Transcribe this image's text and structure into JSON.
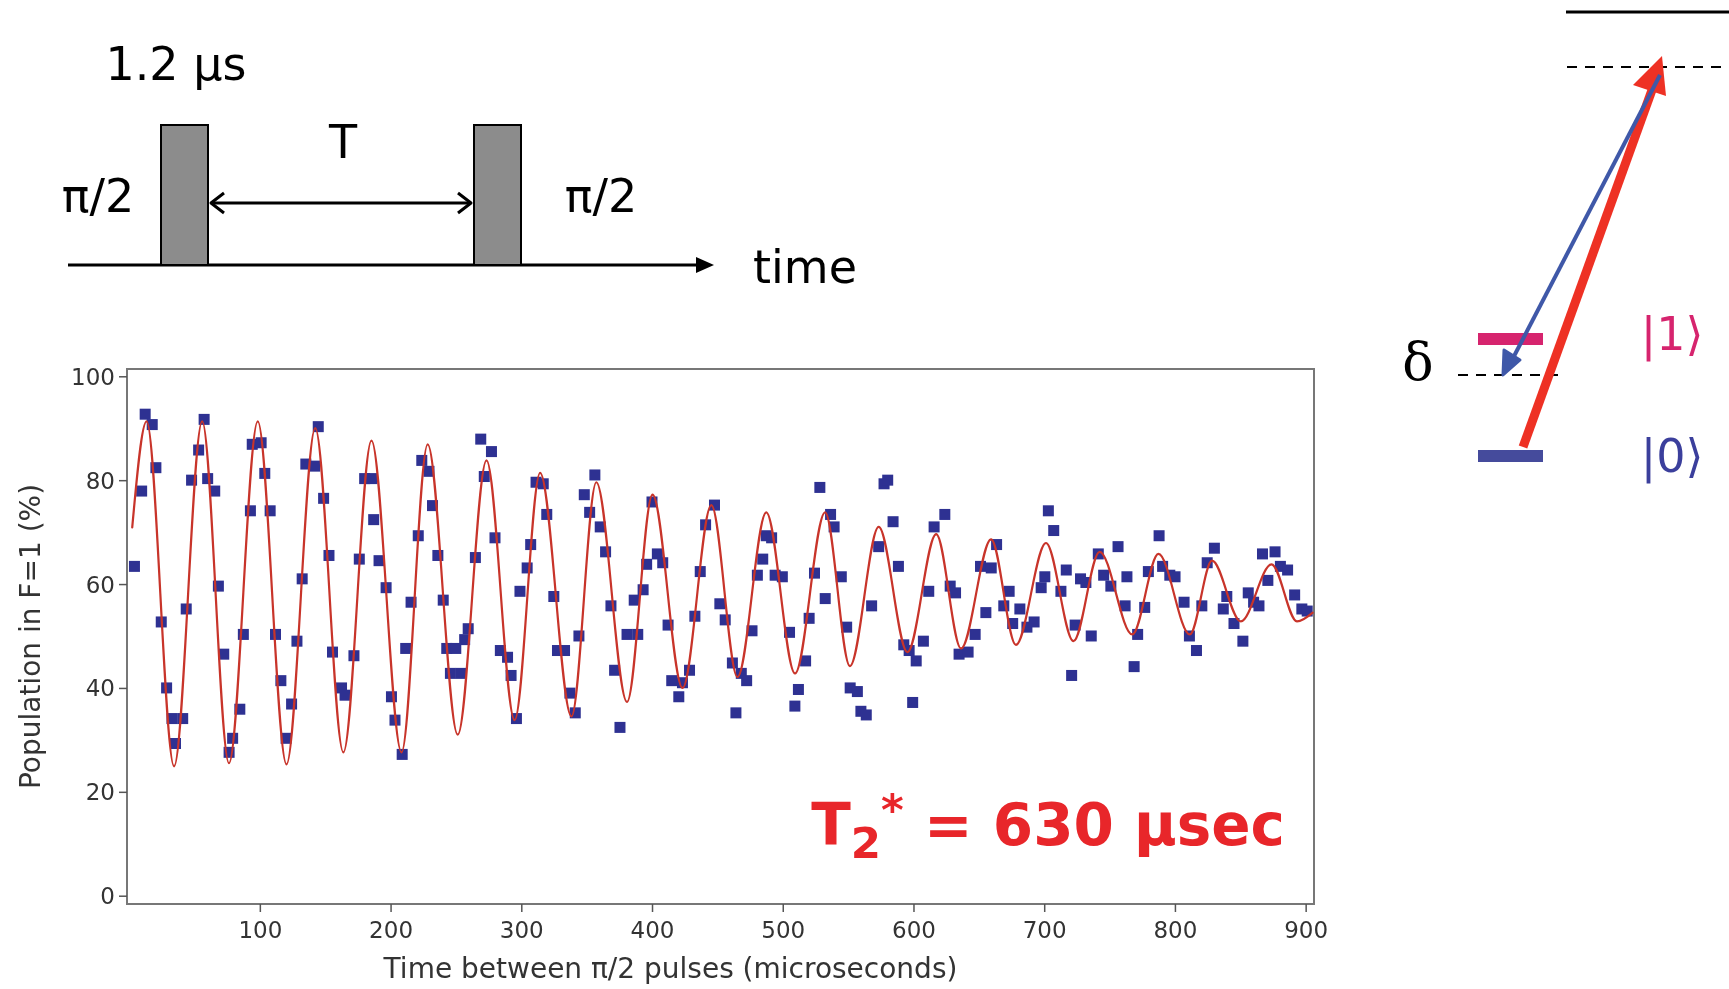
{
  "chart_data": {
    "type": "scatter",
    "xlabel": "Time between π/2 pulses (microseconds)",
    "ylabel": "Population in F=1 (%)",
    "xlim": [
      -2,
      906
    ],
    "ylim": [
      -1.5,
      101.5
    ],
    "xticks": [
      100,
      200,
      300,
      400,
      500,
      600,
      700,
      800,
      900
    ],
    "yticks": [
      0,
      20,
      40,
      60,
      80,
      100
    ],
    "grid": false,
    "annotations": [
      "T$_{2}$$^{*}$ = 630 μsec",
      "1.2 μs",
      "π/2",
      "T",
      "π/2",
      "time",
      "δ",
      "|1⟩",
      "|0⟩"
    ],
    "series": [
      {
        "type": "scatter",
        "marker": "square",
        "color": "#2e3192",
        "x": [
          3.7,
          9.2,
          11.9,
          17.3,
          20.1,
          24.2,
          28.3,
          32.4,
          35.1,
          40.6,
          43.3,
          47.4,
          52.8,
          57,
          59.7,
          65.1,
          67.9,
          72,
          76.1,
          78.8,
          84.3,
          87,
          92.4,
          93.8,
          100.6,
          103.4,
          107.5,
          111.6,
          115.7,
          119.7,
          123.9,
          128,
          132,
          134.8,
          141.6,
          144.3,
          148.4,
          152.5,
          155.2,
          162.1,
          164.8,
          171.6,
          175.7,
          179.8,
          185.3,
          186.7,
          190.8,
          196.2,
          200.3,
          203,
          208.5,
          211.2,
          215.3,
          220.8,
          223.5,
          229,
          231.7,
          235.8,
          239.9,
          242.6,
          245.4,
          249.5,
          253.6,
          256.3,
          259,
          264.5,
          268.6,
          271.3,
          276.8,
          279.5,
          283.6,
          289.1,
          291.8,
          295.9,
          298.6,
          304.1,
          306.8,
          310.9,
          316.4,
          319.1,
          324.5,
          327.3,
          332.7,
          336.8,
          340.9,
          343.7,
          347.8,
          351.9,
          355.9,
          360,
          364.1,
          368.2,
          371,
          375.1,
          380.5,
          386,
          388.7,
          392.8,
          395.5,
          399.6,
          403.7,
          407.8,
          411.9,
          414.7,
          420.1,
          422.9,
          428.3,
          432.4,
          436.5,
          440.6,
          447.4,
          451.5,
          455.6,
          461.1,
          463.8,
          467.9,
          472,
          476.1,
          480.2,
          484.3,
          487,
          491.1,
          493.8,
          499.3,
          504.8,
          508.9,
          511.6,
          517.1,
          519.8,
          523.9,
          528,
          532.1,
          536.2,
          538.9,
          544.4,
          548.5,
          551.2,
          556.7,
          559.4,
          563.5,
          567.6,
          573,
          577.1,
          579.9,
          584,
          588.1,
          592.2,
          596.3,
          599,
          601.7,
          607.2,
          611.3,
          615.4,
          623.6,
          627.7,
          631.8,
          634.5,
          641.4,
          646.8,
          650.9,
          655,
          659.1,
          663.2,
          668.7,
          672.8,
          675.5,
          681,
          686.4,
          691.9,
          697.3,
          700.1,
          702.8,
          706.9,
          712.4,
          716.5,
          720.6,
          723.3,
          727.4,
          731.5,
          735.6,
          741,
          745.1,
          750.6,
          756.1,
          761.5,
          762.9,
          768.4,
          771.1,
          776.5,
          779.3,
          787.5,
          790.2,
          795.7,
          799.7,
          806.6,
          810.7,
          816.1,
          820.2,
          824.3,
          829.8,
          836.6,
          839.3,
          844.8,
          851.6,
          855.7,
          859.8,
          863.9,
          866.6,
          870.7,
          876.2,
          880.3,
          885.8,
          891.2,
          896.7,
          900.8
        ],
        "values": [
          63.5,
          78,
          92.8,
          90.8,
          82.5,
          52.8,
          40.1,
          34.2,
          29.4,
          34.2,
          55.3,
          80.1,
          85.9,
          91.8,
          80.4,
          78,
          59.7,
          46.6,
          27.7,
          30.4,
          36,
          50.4,
          74.2,
          87,
          87.3,
          81.4,
          74.2,
          50.4,
          41.5,
          30.4,
          37,
          49.1,
          61.1,
          83.2,
          82.8,
          90.4,
          76.6,
          65.6,
          47,
          40.1,
          38.7,
          46.3,
          64.9,
          80.4,
          80.4,
          72.5,
          64.6,
          59.4,
          38.4,
          33.9,
          27.3,
          47.7,
          56.6,
          69.4,
          83.9,
          81.8,
          75.2,
          65.6,
          57,
          47.7,
          42.9,
          47.7,
          42.9,
          49.4,
          51.5,
          65.2,
          88,
          80.8,
          85.6,
          69,
          47.3,
          46,
          42.5,
          34.2,
          58.7,
          63.2,
          67.7,
          79.7,
          79.4,
          73.5,
          57.7,
          47.3,
          47.3,
          39.1,
          35.3,
          50.1,
          77.3,
          73.9,
          81.1,
          71.1,
          66.3,
          55.9,
          43.5,
          32.5,
          50.4,
          57,
          50.4,
          59,
          63.9,
          75.9,
          65.9,
          64.2,
          52.2,
          41.5,
          38.4,
          41.1,
          43.5,
          53.9,
          62.5,
          71.5,
          75.3,
          56.3,
          53.2,
          44.9,
          35.3,
          42.9,
          41.5,
          51.1,
          61.8,
          64.9,
          69.4,
          69,
          61.8,
          61.5,
          50.8,
          36.6,
          39.8,
          45.3,
          53.5,
          62.2,
          78.7,
          57.3,
          73.5,
          71.1,
          61.5,
          51.8,
          40.1,
          39.4,
          35.6,
          34.9,
          55.9,
          67.3,
          79.4,
          80.1,
          72.1,
          63.5,
          48.4,
          47.3,
          37.3,
          45.3,
          49.1,
          58.7,
          71.1,
          73.5,
          59.7,
          58.4,
          46.6,
          47,
          50.4,
          63.5,
          54.6,
          63.2,
          67.7,
          55.9,
          58.7,
          52.5,
          55.3,
          51.8,
          52.8,
          59.4,
          61.5,
          74.2,
          70.4,
          58.7,
          62.8,
          42.5,
          52.2,
          61.1,
          60.4,
          50.1,
          65.9,
          61.8,
          59.7,
          67.3,
          55.9,
          61.5,
          44.2,
          50.4,
          55.6,
          62.5,
          69.4,
          63.5,
          61.8,
          61.5,
          56.6,
          50.1,
          47.3,
          55.9,
          64.2,
          67,
          55.3,
          57.7,
          52.5,
          49.1,
          58.4,
          56.6,
          55.9,
          65.9,
          60.8,
          66.3,
          63.5,
          62.8,
          58,
          55.3,
          54.9
        ]
      },
      {
        "type": "line",
        "marker": "none",
        "line_style": "solid",
        "color": "#c8342a",
        "x": [
          2,
          13,
          34,
          55.5,
          76,
          98,
          120,
          142,
          163.5,
          185,
          208,
          228,
          251,
          273,
          294.5,
          314,
          338,
          357,
          380.5,
          400,
          423,
          445,
          465,
          487,
          509,
          532,
          551,
          573,
          595,
          617,
          636,
          659,
          678,
          701,
          722,
          742,
          767,
          787,
          811,
          828,
          850,
          873.5,
          893,
          905
        ],
        "values": [
          71,
          91.4,
          25,
          91.4,
          25.6,
          91.4,
          25.4,
          90.1,
          27.7,
          87.7,
          27.7,
          87,
          31.1,
          83.9,
          33.9,
          81.5,
          34.6,
          79.7,
          37.4,
          77.3,
          40.1,
          75.3,
          42.2,
          73.9,
          42.9,
          73.9,
          44.3,
          71.1,
          47,
          69.7,
          47.7,
          68.7,
          48.4,
          68,
          49.1,
          66.3,
          50.4,
          65.9,
          50.4,
          64.6,
          52.9,
          63.9,
          52.9,
          54.6
        ]
      }
    ]
  }
}
